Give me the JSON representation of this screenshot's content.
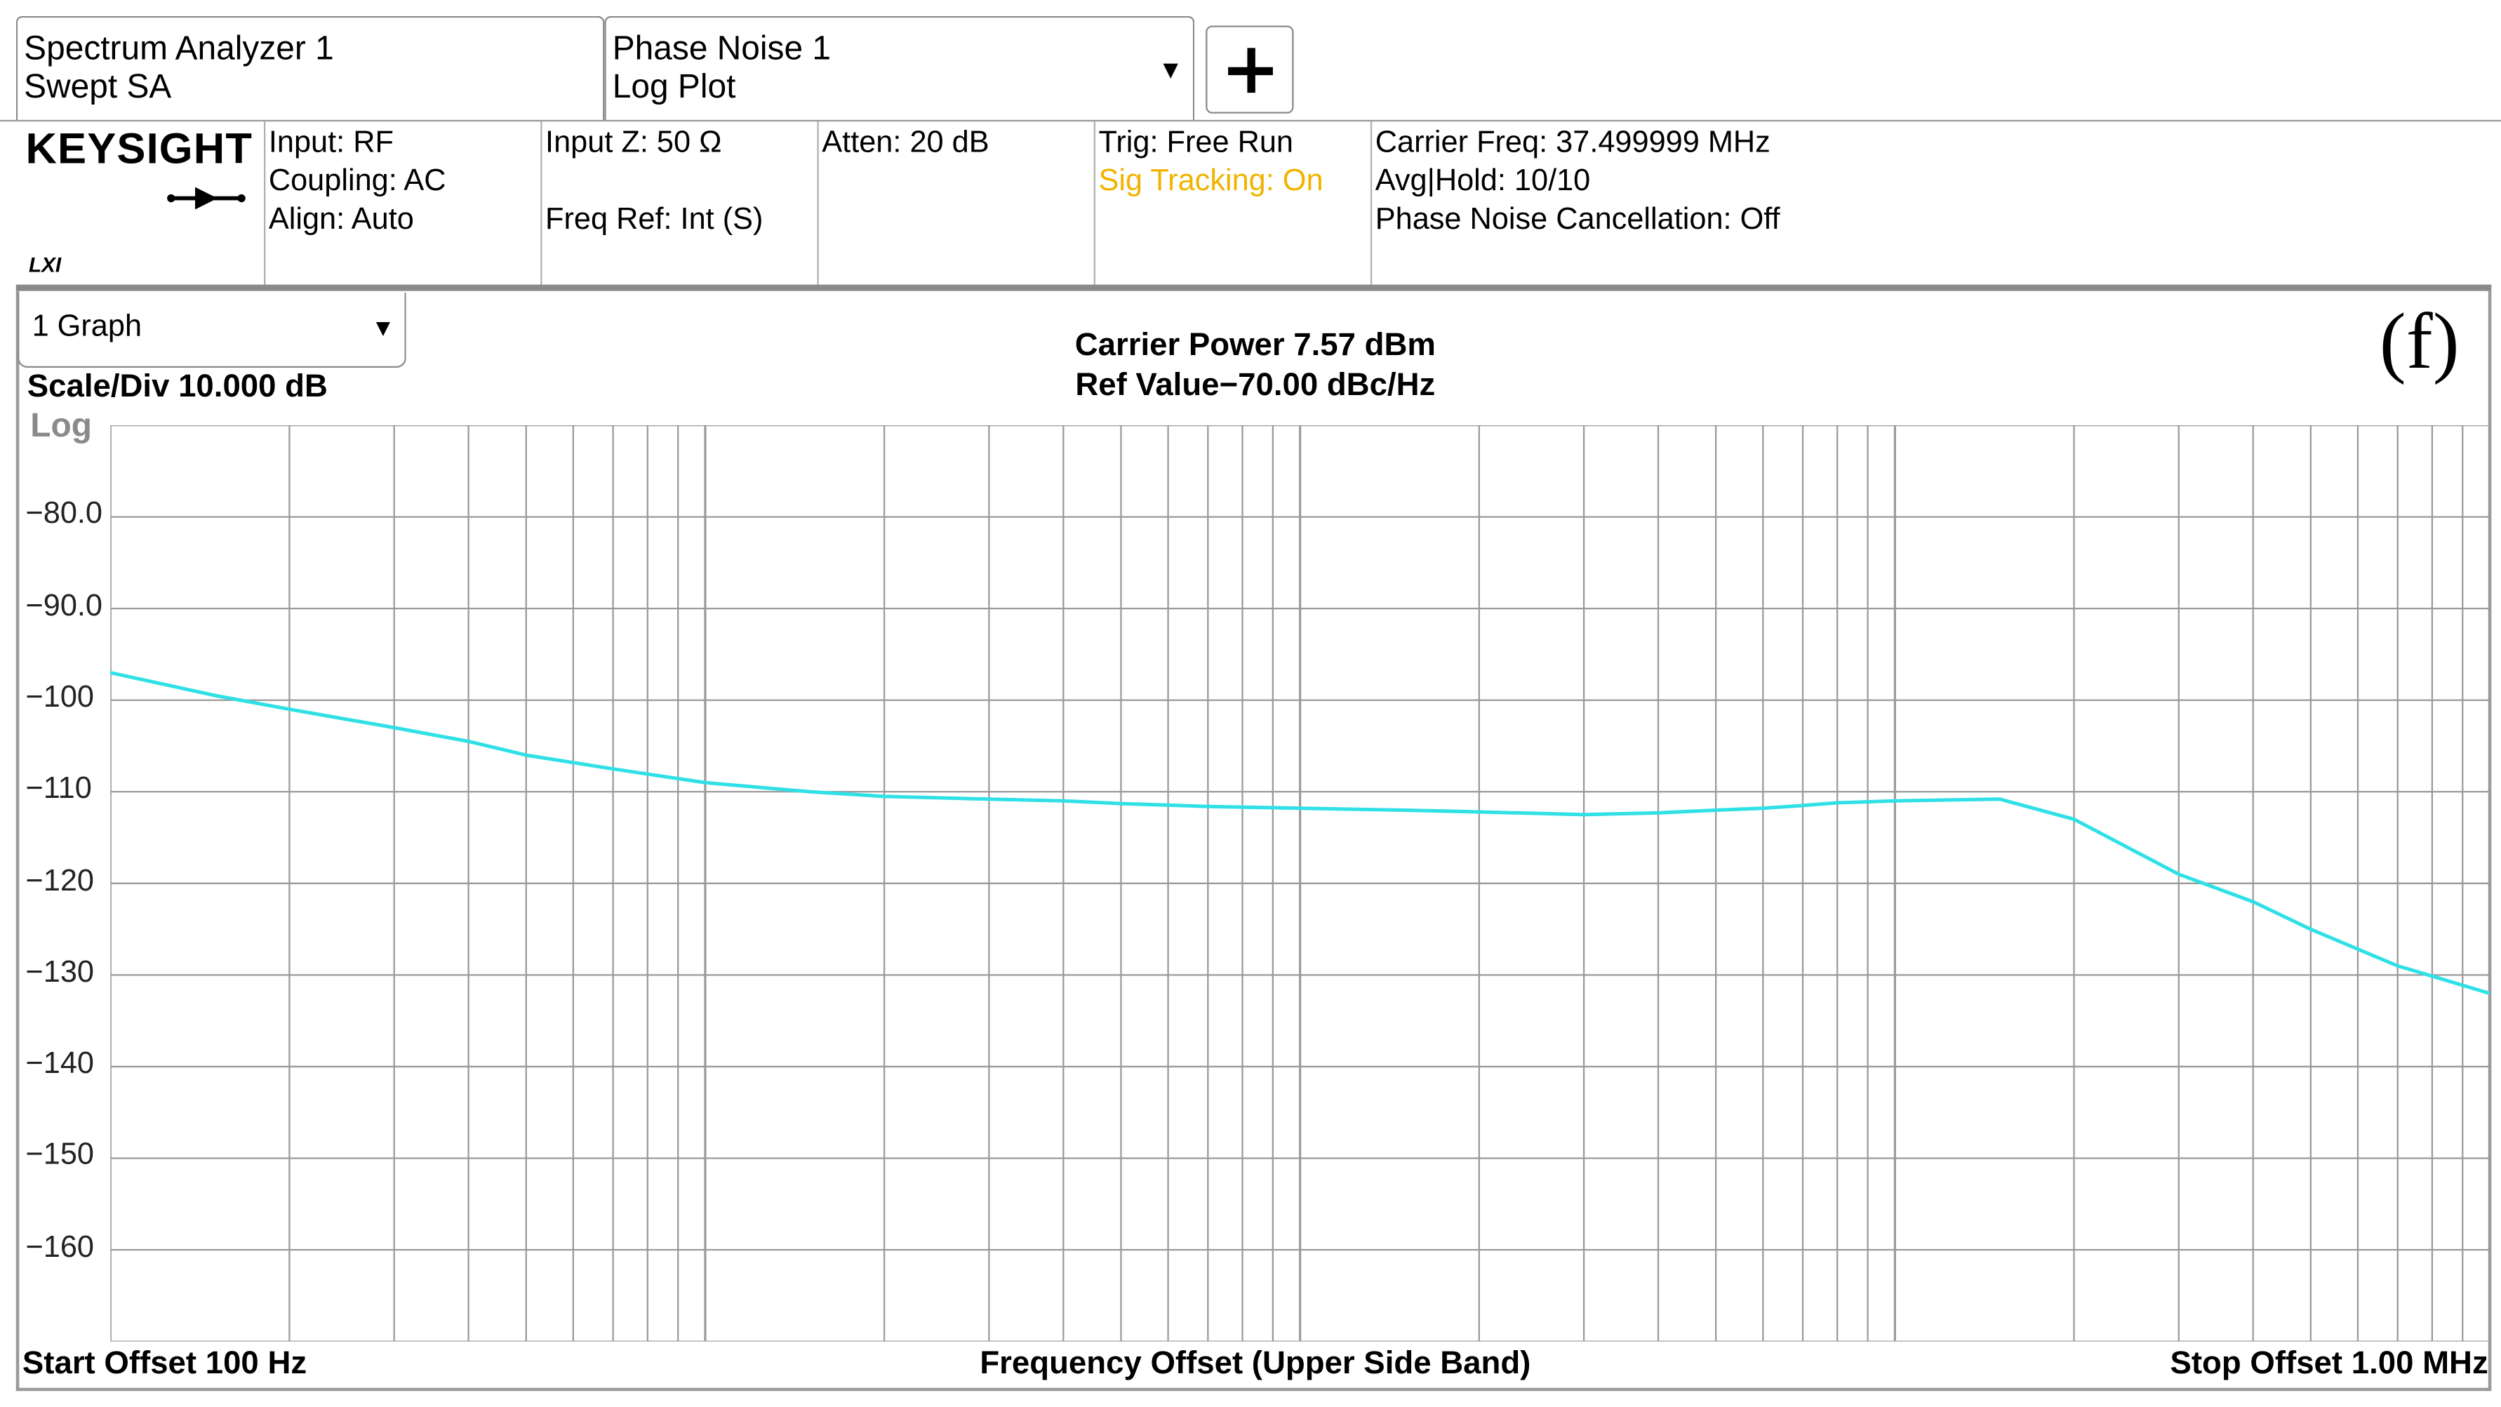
{
  "tabs": [
    {
      "line1": "Spectrum Analyzer 1",
      "line2": "Swept SA"
    },
    {
      "line1": "Phase Noise 1",
      "line2": "Log Plot",
      "dropdown": "▼"
    }
  ],
  "add_button": "+",
  "logo": {
    "brand": "KEYSIGHT",
    "lxi": "LXI",
    "icon": "rf-input-arrow-icon"
  },
  "info": {
    "col1": [
      "Input: RF",
      "Coupling: AC",
      "Align: Auto"
    ],
    "col2": [
      "Input Z: 50 Ω",
      "",
      "Freq Ref: Int (S)"
    ],
    "col3": [
      "Atten: 20 dB"
    ],
    "col4": [
      "Trig: Free Run",
      "Sig Tracking: On"
    ],
    "col5": [
      "Carrier Freq: 37.499999 MHz",
      "Avg|Hold: 10/10",
      "Phase Noise Cancellation: Off"
    ]
  },
  "colors": {
    "trace": "#2fe0e6",
    "grid": "#9a9a9a",
    "sig_tracking": "#f0b400"
  },
  "graph_select": {
    "value": "1 Graph",
    "dropdown": "▼"
  },
  "figure_label": "(f)",
  "chart_data": {
    "type": "line",
    "title": "Carrier Power 7.57 dBm",
    "subtitle": "Ref Value−70.00 dBc/Hz",
    "scale_label": "Scale/Div 10.000 dB",
    "scale_type": "Log",
    "xlabel": "Frequency Offset (Upper Side Band)",
    "x_start_label": "Start Offset 100 Hz",
    "x_stop_label": "Stop Offset 1.00 MHz",
    "x_scale": "log",
    "xlim": [
      100,
      1000000
    ],
    "ylim": [
      -170,
      -70
    ],
    "yticks": [
      -80.0,
      -90.0,
      -100,
      -110,
      -120,
      -130,
      -140,
      -150,
      -160
    ],
    "ytick_labels": [
      "−80.0",
      "−90.0",
      "−100",
      "−110",
      "−120",
      "−130",
      "−140",
      "−150",
      "−160"
    ],
    "grid": true,
    "series": [
      {
        "x": [
          100,
          150,
          200,
          300,
          400,
          500,
          700,
          1000,
          1500,
          2000,
          3000,
          4000,
          5000,
          7000,
          10000,
          15000,
          20000,
          30000,
          40000,
          50000,
          60000,
          70000,
          80000,
          100000,
          150000,
          200000,
          300000,
          400000,
          500000,
          700000,
          1000000
        ],
        "y": [
          -97,
          -99.5,
          -101,
          -103,
          -104.5,
          -106,
          -107.5,
          -109,
          -110,
          -110.5,
          -110.8,
          -111,
          -111.3,
          -111.6,
          -111.8,
          -112,
          -112.2,
          -112.5,
          -112.3,
          -112,
          -111.8,
          -111.5,
          -111.2,
          -111,
          -110.8,
          -113,
          -119,
          -122,
          -125,
          -129,
          -132
        ]
      }
    ]
  }
}
